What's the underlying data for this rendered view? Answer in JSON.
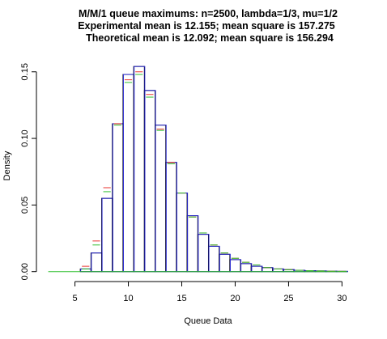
{
  "chart_data": {
    "type": "bar",
    "title": [
      "M/M/1 queue maximums: n=2500, lambda=1/3, mu=1/2",
      "Experimental mean is 12.155; mean square is 157.275",
      "Theoretical mean is 12.092; mean square is 156.294"
    ],
    "xlabel": "Queue Data",
    "ylabel": "Density",
    "xlim": [
      2,
      30.5
    ],
    "ylim": [
      -0.002,
      0.162
    ],
    "xticks": [
      5,
      10,
      15,
      20,
      25,
      30
    ],
    "yticks": [
      0.0,
      0.05,
      0.1,
      0.15
    ],
    "ytick_labels": [
      "0.00",
      "0.05",
      "0.10",
      "0.15"
    ],
    "bin_width": 1,
    "bins": [
      {
        "left": 5.5,
        "right": 6.5,
        "black": 0.002,
        "blue": 0.002,
        "red": 0.004,
        "green": 0.002
      },
      {
        "left": 6.5,
        "right": 7.5,
        "black": 0.014,
        "blue": 0.014,
        "red": 0.023,
        "green": 0.02
      },
      {
        "left": 7.5,
        "right": 8.5,
        "black": 0.055,
        "blue": 0.055,
        "red": 0.063,
        "green": 0.06
      },
      {
        "left": 8.5,
        "right": 9.5,
        "black": 0.111,
        "blue": 0.111,
        "red": 0.111,
        "green": 0.11
      },
      {
        "left": 9.5,
        "right": 10.5,
        "black": 0.148,
        "blue": 0.148,
        "red": 0.144,
        "green": 0.142
      },
      {
        "left": 10.5,
        "right": 11.5,
        "black": 0.154,
        "blue": 0.154,
        "red": 0.15,
        "green": 0.148
      },
      {
        "left": 11.5,
        "right": 12.5,
        "black": 0.136,
        "blue": 0.136,
        "red": 0.133,
        "green": 0.131
      },
      {
        "left": 12.5,
        "right": 13.5,
        "black": 0.11,
        "blue": 0.11,
        "red": 0.107,
        "green": 0.106
      },
      {
        "left": 13.5,
        "right": 14.5,
        "black": 0.082,
        "blue": 0.082,
        "red": 0.082,
        "green": 0.081
      },
      {
        "left": 14.5,
        "right": 15.5,
        "black": 0.059,
        "blue": 0.059,
        "red": 0.059,
        "green": 0.059
      },
      {
        "left": 15.5,
        "right": 16.5,
        "black": 0.042,
        "blue": 0.042,
        "red": 0.041,
        "green": 0.041
      },
      {
        "left": 16.5,
        "right": 17.5,
        "black": 0.028,
        "blue": 0.028,
        "red": 0.029,
        "green": 0.029
      },
      {
        "left": 17.5,
        "right": 18.5,
        "black": 0.019,
        "blue": 0.019,
        "red": 0.02,
        "green": 0.02
      },
      {
        "left": 18.5,
        "right": 19.5,
        "black": 0.013,
        "blue": 0.013,
        "red": 0.014,
        "green": 0.014
      },
      {
        "left": 19.5,
        "right": 20.5,
        "black": 0.009,
        "blue": 0.009,
        "red": 0.01,
        "green": 0.01
      },
      {
        "left": 20.5,
        "right": 21.5,
        "black": 0.006,
        "blue": 0.006,
        "red": 0.007,
        "green": 0.007
      },
      {
        "left": 21.5,
        "right": 22.5,
        "black": 0.004,
        "blue": 0.004,
        "red": 0.005,
        "green": 0.005
      },
      {
        "left": 22.5,
        "right": 23.5,
        "black": 0.003,
        "blue": 0.003,
        "red": 0.003,
        "green": 0.003
      },
      {
        "left": 23.5,
        "right": 24.5,
        "black": 0.002,
        "blue": 0.002,
        "red": 0.002,
        "green": 0.002
      },
      {
        "left": 24.5,
        "right": 25.5,
        "black": 0.0015,
        "blue": 0.0015,
        "red": 0.0015,
        "green": 0.0015
      },
      {
        "left": 25.5,
        "right": 26.5,
        "black": 0.001,
        "blue": 0.001,
        "red": 0.001,
        "green": 0.001
      },
      {
        "left": 26.5,
        "right": 27.5,
        "black": 0.0007,
        "blue": 0.0007,
        "red": 0.0007,
        "green": 0.0007
      },
      {
        "left": 27.5,
        "right": 28.5,
        "black": 0.0005,
        "blue": 0.0005,
        "red": 0.0005,
        "green": 0.0005
      },
      {
        "left": 28.5,
        "right": 29.5,
        "black": 0.0003,
        "blue": 0.0003,
        "red": 0.0003,
        "green": 0.0003
      },
      {
        "left": 29.5,
        "right": 30.5,
        "black": 0.0002,
        "blue": 0.0002,
        "red": 0.0002,
        "green": 0.0002
      }
    ],
    "baseline_segments": [
      {
        "x1": 2.5,
        "x2": 5.5,
        "color": "green"
      }
    ],
    "colors": {
      "black": "#000000",
      "blue": "#2b2bd0",
      "red": "#e8322e",
      "green": "#2fbf2f"
    },
    "grid": false
  }
}
